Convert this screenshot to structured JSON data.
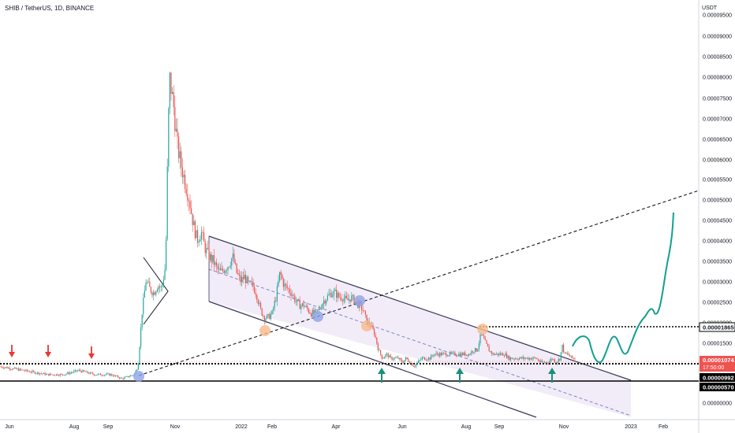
{
  "header": {
    "title": "SHIB / TetherUS, 1D, BINANCE",
    "currency": "USDT"
  },
  "colors": {
    "up": "#26a69a",
    "down": "#ef5350",
    "channel_fill": "#e8dcf2",
    "channel_line": "#3a3a5a",
    "arrow_red": "#e53935",
    "arrow_green": "#1a8f7a",
    "circle_blue": "#8ea2e6",
    "circle_orange": "#f7b98a",
    "forecast": "#13a08e",
    "badge_red": "#ef5350",
    "badge_black": "#000000"
  },
  "chart_data": {
    "type": "candlestick",
    "title": "SHIB / TetherUS, 1D, BINANCE",
    "y_unit": "USDT",
    "ylim": [
      -8e-07,
      9.5e-06
    ],
    "y_ticks": [
      "0.00009500",
      "0.00009000",
      "0.00008500",
      "0.00008000",
      "0.00007500",
      "0.00007000",
      "0.00006500",
      "0.00006000",
      "0.00005500",
      "0.00005000",
      "0.00004500",
      "0.00004000",
      "0.00003500",
      "0.00003000",
      "0.00002500",
      "0.00002000",
      "0.00001500",
      "0.00000000"
    ],
    "x_ticks": [
      "Jun",
      "Aug",
      "Sep",
      "Nov",
      "2022",
      "Feb",
      "Apr",
      "Jun",
      "Aug",
      "Sep",
      "Nov",
      "2023",
      "Feb"
    ],
    "price_badges": [
      {
        "label": "0.00001865",
        "style": "white"
      },
      {
        "label": "0.00001074",
        "sub": "17:50:00",
        "style": "red"
      },
      {
        "label": "0.00000992",
        "style": "black"
      },
      {
        "label": "0.00000570",
        "style": "black"
      }
    ],
    "price_path": [
      [
        0,
        9e-07
      ],
      [
        30,
        8e-07
      ],
      [
        60,
        7e-07
      ],
      [
        80,
        7e-07
      ],
      [
        100,
        8e-07
      ],
      [
        120,
        7e-07
      ],
      [
        140,
        7e-07
      ],
      [
        155,
        6e-07
      ],
      [
        170,
        7e-07
      ],
      [
        175,
        9e-07
      ],
      [
        180,
        2.2e-06
      ],
      [
        185,
        3e-06
      ],
      [
        190,
        2.8e-06
      ],
      [
        195,
        2.7e-06
      ],
      [
        200,
        2.9e-06
      ],
      [
        205,
        2.8e-06
      ],
      [
        210,
        3.4e-06
      ],
      [
        213,
        6.5e-06
      ],
      [
        215,
        8e-06
      ],
      [
        220,
        7.3e-06
      ],
      [
        225,
        6.3e-06
      ],
      [
        230,
        5.8e-06
      ],
      [
        235,
        5.4e-06
      ],
      [
        240,
        5e-06
      ],
      [
        245,
        4.4e-06
      ],
      [
        250,
        4e-06
      ],
      [
        255,
        4.2e-06
      ],
      [
        260,
        3.8e-06
      ],
      [
        265,
        3.6e-06
      ],
      [
        270,
        3.5e-06
      ],
      [
        275,
        3.3e-06
      ],
      [
        280,
        3.2e-06
      ],
      [
        285,
        3.3e-06
      ],
      [
        290,
        3.4e-06
      ],
      [
        295,
        3.6e-06
      ],
      [
        300,
        3.2e-06
      ],
      [
        305,
        3e-06
      ],
      [
        310,
        3.1e-06
      ],
      [
        315,
        2.9e-06
      ],
      [
        320,
        2.9e-06
      ],
      [
        325,
        2.7e-06
      ],
      [
        330,
        2.3e-06
      ],
      [
        335,
        2.1e-06
      ],
      [
        340,
        2.1e-06
      ],
      [
        345,
        2.2e-06
      ],
      [
        350,
        2.6e-06
      ],
      [
        355,
        3.2e-06
      ],
      [
        360,
        2.9e-06
      ],
      [
        365,
        2.8e-06
      ],
      [
        370,
        2.7e-06
      ],
      [
        375,
        2.5e-06
      ],
      [
        380,
        2.4e-06
      ],
      [
        385,
        2.4e-06
      ],
      [
        390,
        2.3e-06
      ],
      [
        395,
        2.2e-06
      ],
      [
        400,
        2.2e-06
      ],
      [
        405,
        2.3e-06
      ],
      [
        410,
        2.5e-06
      ],
      [
        415,
        2.6e-06
      ],
      [
        420,
        2.7e-06
      ],
      [
        425,
        2.7e-06
      ],
      [
        430,
        2.6e-06
      ],
      [
        435,
        2.6e-06
      ],
      [
        440,
        2.5e-06
      ],
      [
        445,
        2.6e-06
      ],
      [
        450,
        2.5e-06
      ],
      [
        455,
        2.4e-06
      ],
      [
        460,
        2.3e-06
      ],
      [
        465,
        2e-06
      ],
      [
        470,
        1.9e-06
      ],
      [
        475,
        1.7e-06
      ],
      [
        480,
        1.3e-06
      ],
      [
        485,
        1.1e-06
      ],
      [
        490,
        1.2e-06
      ],
      [
        495,
        1.1e-06
      ],
      [
        500,
        1.1e-06
      ],
      [
        505,
        1.1e-06
      ],
      [
        510,
        1e-06
      ],
      [
        515,
        1.1e-06
      ],
      [
        520,
        1e-06
      ],
      [
        525,
        9e-07
      ],
      [
        530,
        1e-06
      ],
      [
        535,
        1.1e-06
      ],
      [
        540,
        1.1e-06
      ],
      [
        545,
        1.1e-06
      ],
      [
        550,
        1.2e-06
      ],
      [
        555,
        1.2e-06
      ],
      [
        560,
        1.2e-06
      ],
      [
        565,
        1.2e-06
      ],
      [
        570,
        1.2e-06
      ],
      [
        575,
        1.2e-06
      ],
      [
        580,
        1.2e-06
      ],
      [
        585,
        1.2e-06
      ],
      [
        590,
        1.2e-06
      ],
      [
        595,
        1.2e-06
      ],
      [
        600,
        1.3e-06
      ],
      [
        605,
        1.3e-06
      ],
      [
        610,
        1.7e-06
      ],
      [
        615,
        1.5e-06
      ],
      [
        620,
        1.3e-06
      ],
      [
        625,
        1.2e-06
      ],
      [
        630,
        1.2e-06
      ],
      [
        635,
        1.2e-06
      ],
      [
        640,
        1.2e-06
      ],
      [
        645,
        1.1e-06
      ],
      [
        650,
        1.1e-06
      ],
      [
        655,
        1.1e-06
      ],
      [
        660,
        1.1e-06
      ],
      [
        665,
        1.1e-06
      ],
      [
        670,
        1.1e-06
      ],
      [
        675,
        1.1e-06
      ],
      [
        680,
        1.1e-06
      ],
      [
        685,
        1e-06
      ],
      [
        690,
        1e-06
      ],
      [
        695,
        1e-06
      ],
      [
        700,
        1.1e-06
      ],
      [
        705,
        1e-06
      ],
      [
        710,
        1.1e-06
      ],
      [
        713,
        1.4e-06
      ],
      [
        716,
        1.2e-06
      ],
      [
        720,
        1.2e-06
      ],
      [
        725,
        1.1e-06
      ],
      [
        730,
        1.1e-06
      ]
    ]
  }
}
